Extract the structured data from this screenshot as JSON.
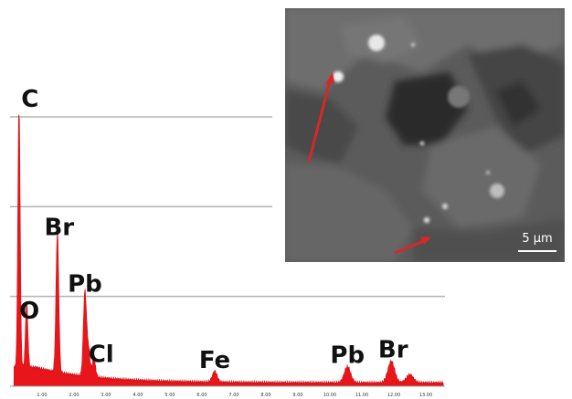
{
  "chart_data": {
    "type": "line",
    "title": "",
    "xlabel": "",
    "ylabel": "",
    "xlim": [
      0,
      13.6
    ],
    "ylim": [
      0,
      100
    ],
    "grid": true,
    "x_ticks": [
      "1.00",
      "2.00",
      "3.00",
      "4.00",
      "5.00",
      "6.00",
      "7.00",
      "8.00",
      "9.00",
      "10.00",
      "11.00",
      "12.00",
      "13.00"
    ],
    "colors": {
      "spectrum": "#e8161b",
      "grid": "#b3b3b3",
      "arrow": "#d62828"
    },
    "peaks": [
      {
        "label": "C",
        "energy": 0.28,
        "height": 99
      },
      {
        "label": "O",
        "energy": 0.52,
        "height": 24
      },
      {
        "label": "Br",
        "energy": 1.48,
        "height": 52
      },
      {
        "label": "Pb",
        "energy": 2.34,
        "height": 31
      },
      {
        "label": "Cl",
        "energy": 2.62,
        "height": 7
      },
      {
        "label": "Fe",
        "energy": 6.4,
        "height": 4
      },
      {
        "label": "Pb",
        "energy": 10.55,
        "height": 6
      },
      {
        "label": "Br",
        "energy": 11.92,
        "height": 8
      }
    ],
    "minor_peaks": [
      {
        "energy": 2.45,
        "height": 10
      },
      {
        "energy": 12.5,
        "height": 3
      }
    ]
  },
  "sem_image": {
    "scale_bar_label": "5 µm"
  }
}
